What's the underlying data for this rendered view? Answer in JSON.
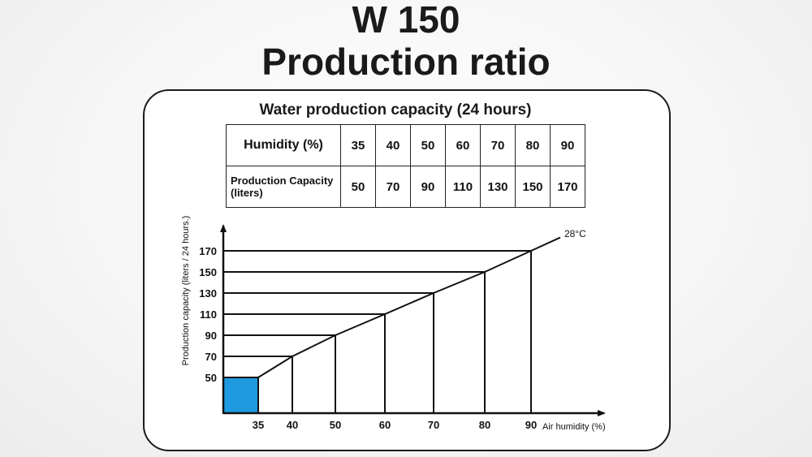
{
  "page": {
    "title_line1": "W 150",
    "title_line2": "Production ratio"
  },
  "table": {
    "caption": "Water production capacity (24 hours)",
    "row1_label": "Humidity (%)",
    "row2_label_line1": "Production Capacity",
    "row2_label_line2": "(liters)",
    "humidity": [
      "35",
      "40",
      "50",
      "60",
      "70",
      "80",
      "90"
    ],
    "capacity": [
      "50",
      "70",
      "90",
      "110",
      "130",
      "150",
      "170"
    ]
  },
  "chart_data": {
    "type": "line",
    "x": [
      35,
      40,
      50,
      60,
      70,
      80,
      90
    ],
    "series": [
      {
        "name": "28°C",
        "values": [
          50,
          70,
          90,
          110,
          130,
          150,
          170
        ]
      }
    ],
    "xlabel": "Air humidity (%)",
    "ylabel": "Production capacity (liters / 24 hours.)",
    "x_tick_labels": [
      "35",
      "40",
      "50",
      "60",
      "70",
      "80",
      "90"
    ],
    "y_tick_labels": [
      "50",
      "70",
      "90",
      "110",
      "130",
      "150",
      "170"
    ],
    "grid": false,
    "highlight_color": "#1e9be0",
    "line_color": "#111111"
  }
}
